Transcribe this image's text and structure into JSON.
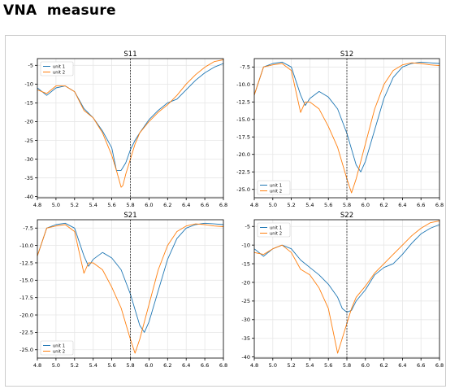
{
  "page": {
    "title": "VNA  measure"
  },
  "colors": {
    "unit1": "#1f77b4",
    "unit2": "#ff7f0e",
    "grid": "#e6e6e6",
    "marker": "#000000"
  },
  "chart_data": [
    {
      "type": "line",
      "title": "S11",
      "xlim": [
        4.8,
        6.8
      ],
      "ylim": [
        -40.3,
        -3.2
      ],
      "xticks": [
        4.8,
        5.0,
        5.2,
        5.4,
        5.6,
        5.8,
        6.0,
        6.2,
        6.4,
        6.6,
        6.8
      ],
      "yticks": [
        -5,
        -10,
        -15,
        -20,
        -25,
        -30,
        -35,
        -40
      ],
      "marker_x": 5.8,
      "legend": "upper-left",
      "grid": true,
      "series": [
        {
          "name": "unit 1",
          "x": [
            4.8,
            4.9,
            5.0,
            5.1,
            5.2,
            5.3,
            5.4,
            5.5,
            5.6,
            5.65,
            5.7,
            5.75,
            5.8,
            5.85,
            5.9,
            6.0,
            6.1,
            6.2,
            6.3,
            6.4,
            6.5,
            6.6,
            6.7,
            6.8
          ],
          "y": [
            -11,
            -13,
            -11,
            -10.5,
            -12,
            -16.5,
            -19,
            -22.5,
            -27,
            -33,
            -33,
            -31,
            -27.5,
            -25,
            -23,
            -19.5,
            -17,
            -15,
            -14,
            -11.5,
            -9,
            -7,
            -5.5,
            -4.5
          ]
        },
        {
          "name": "unit 2",
          "x": [
            4.8,
            4.9,
            5.0,
            5.1,
            5.2,
            5.3,
            5.4,
            5.5,
            5.6,
            5.65,
            5.7,
            5.72,
            5.75,
            5.8,
            5.85,
            5.9,
            6.0,
            6.1,
            6.2,
            6.3,
            6.4,
            6.5,
            6.6,
            6.7,
            6.8
          ],
          "y": [
            -11.5,
            -12.5,
            -10.5,
            -10.5,
            -12,
            -17,
            -19,
            -23,
            -29,
            -33,
            -37.5,
            -37,
            -34,
            -30,
            -26,
            -23,
            -20,
            -17.5,
            -15.5,
            -13,
            -10,
            -7.5,
            -5.5,
            -4,
            -3.5
          ]
        }
      ]
    },
    {
      "type": "line",
      "title": "S12",
      "xlim": [
        4.8,
        6.8
      ],
      "ylim": [
        -26.2,
        -6.3
      ],
      "xticks": [
        4.8,
        5.0,
        5.2,
        5.4,
        5.6,
        5.8,
        6.0,
        6.2,
        6.4,
        6.6,
        6.8
      ],
      "yticks": [
        -7.5,
        -10.0,
        -12.5,
        -15.0,
        -17.5,
        -20.0,
        -22.5,
        -25.0
      ],
      "marker_x": 5.8,
      "legend": "lower-left",
      "grid": true,
      "series": [
        {
          "name": "unit 1",
          "x": [
            4.8,
            4.9,
            5.0,
            5.1,
            5.2,
            5.3,
            5.35,
            5.4,
            5.5,
            5.6,
            5.7,
            5.8,
            5.9,
            5.95,
            6.0,
            6.1,
            6.2,
            6.3,
            6.4,
            6.5,
            6.6,
            6.7,
            6.8
          ],
          "y": [
            -11.5,
            -7.5,
            -7,
            -6.8,
            -7.5,
            -11.5,
            -13,
            -12,
            -11,
            -11.8,
            -13.5,
            -17,
            -21.5,
            -22.5,
            -21,
            -16.5,
            -12,
            -9,
            -7.5,
            -7,
            -6.8,
            -6.9,
            -7
          ]
        },
        {
          "name": "unit 2",
          "x": [
            4.8,
            4.9,
            5.0,
            5.1,
            5.2,
            5.3,
            5.35,
            5.4,
            5.5,
            5.6,
            5.7,
            5.8,
            5.85,
            5.9,
            6.0,
            6.1,
            6.2,
            6.3,
            6.4,
            6.5,
            6.6,
            6.7,
            6.8
          ],
          "y": [
            -11.5,
            -7.5,
            -7.2,
            -7,
            -8,
            -14,
            -12.5,
            -12.5,
            -13.5,
            -16,
            -19,
            -23.5,
            -25.5,
            -23.5,
            -18.5,
            -13.5,
            -10,
            -8,
            -7.2,
            -6.9,
            -7,
            -7.2,
            -7.3
          ]
        }
      ]
    },
    {
      "type": "line",
      "title": "S21",
      "xlim": [
        4.8,
        6.8
      ],
      "ylim": [
        -26.2,
        -6.3
      ],
      "xticks": [
        4.8,
        5.0,
        5.2,
        5.4,
        5.6,
        5.8,
        6.0,
        6.2,
        6.4,
        6.6,
        6.8
      ],
      "yticks": [
        -7.5,
        -10.0,
        -12.5,
        -15.0,
        -17.5,
        -20.0,
        -22.5,
        -25.0
      ],
      "marker_x": 5.8,
      "legend": "lower-left",
      "grid": true,
      "series": [
        {
          "name": "unit 1",
          "x": [
            4.8,
            4.9,
            5.0,
            5.1,
            5.2,
            5.3,
            5.35,
            5.4,
            5.5,
            5.6,
            5.7,
            5.8,
            5.9,
            5.95,
            6.0,
            6.1,
            6.2,
            6.3,
            6.4,
            6.5,
            6.6,
            6.7,
            6.8
          ],
          "y": [
            -11.5,
            -7.5,
            -7,
            -6.8,
            -7.5,
            -11.5,
            -13,
            -12,
            -11,
            -11.8,
            -13.5,
            -17,
            -21.5,
            -22.5,
            -21,
            -16.5,
            -12,
            -9,
            -7.5,
            -7,
            -6.8,
            -6.9,
            -7
          ]
        },
        {
          "name": "unit 2",
          "x": [
            4.8,
            4.9,
            5.0,
            5.1,
            5.2,
            5.3,
            5.35,
            5.4,
            5.5,
            5.6,
            5.7,
            5.8,
            5.85,
            5.9,
            6.0,
            6.1,
            6.2,
            6.3,
            6.4,
            6.5,
            6.6,
            6.7,
            6.8
          ],
          "y": [
            -11.5,
            -7.5,
            -7.2,
            -7,
            -8,
            -14,
            -12.5,
            -12.5,
            -13.5,
            -16,
            -19,
            -23.5,
            -25.5,
            -23.5,
            -18.5,
            -13.5,
            -10,
            -8,
            -7.2,
            -6.9,
            -7,
            -7.2,
            -7.3
          ]
        }
      ]
    },
    {
      "type": "line",
      "title": "S22",
      "xlim": [
        4.8,
        6.8
      ],
      "ylim": [
        -40.3,
        -3.2
      ],
      "xticks": [
        4.8,
        5.0,
        5.2,
        5.4,
        5.6,
        5.8,
        6.0,
        6.2,
        6.4,
        6.6,
        6.8
      ],
      "yticks": [
        -5,
        -10,
        -15,
        -20,
        -25,
        -30,
        -35,
        -40
      ],
      "marker_x": 5.8,
      "legend": "upper-left",
      "grid": true,
      "series": [
        {
          "name": "unit 1",
          "x": [
            4.8,
            4.9,
            5.0,
            5.1,
            5.2,
            5.3,
            5.4,
            5.5,
            5.6,
            5.7,
            5.75,
            5.8,
            5.85,
            5.9,
            6.0,
            6.1,
            6.2,
            6.3,
            6.4,
            6.5,
            6.6,
            6.7,
            6.8
          ],
          "y": [
            -11,
            -13,
            -11,
            -10,
            -11,
            -14,
            -16,
            -18,
            -20.5,
            -24,
            -27,
            -28,
            -27.5,
            -25,
            -22,
            -18,
            -16,
            -15,
            -12.5,
            -9.5,
            -7,
            -5.5,
            -4.5
          ]
        },
        {
          "name": "unit 2",
          "x": [
            4.8,
            4.9,
            5.0,
            5.1,
            5.2,
            5.3,
            5.4,
            5.5,
            5.6,
            5.65,
            5.7,
            5.75,
            5.8,
            5.85,
            5.9,
            6.0,
            6.1,
            6.2,
            6.3,
            6.4,
            6.5,
            6.6,
            6.7,
            6.8
          ],
          "y": [
            -12,
            -12.5,
            -11,
            -10,
            -12,
            -16.5,
            -18,
            -21.5,
            -27,
            -33,
            -39,
            -35,
            -31,
            -27,
            -24,
            -21,
            -17.5,
            -15,
            -12.5,
            -10,
            -7.5,
            -5.5,
            -4,
            -3.5
          ]
        }
      ]
    }
  ]
}
